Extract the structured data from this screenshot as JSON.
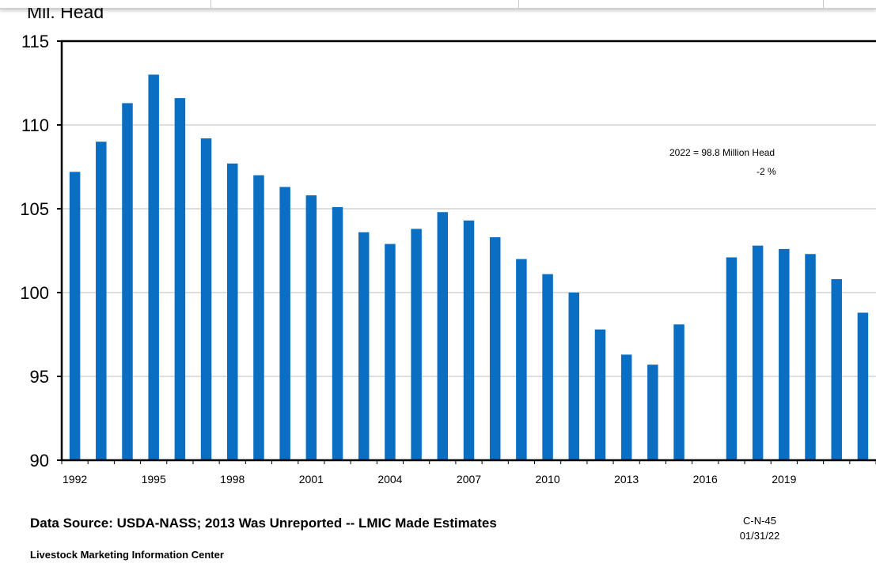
{
  "window": {
    "strip_separators": 3
  },
  "chart_data": {
    "type": "bar",
    "ylabel": "Mil. Head",
    "ylim": [
      90,
      115
    ],
    "yticks": [
      90,
      95,
      100,
      105,
      110,
      115
    ],
    "grid": true,
    "bar_color": "#0a6fc2",
    "categories": [
      "1992",
      "1993",
      "1994",
      "1995",
      "1996",
      "1997",
      "1998",
      "1999",
      "2000",
      "2001",
      "2002",
      "2003",
      "2004",
      "2005",
      "2006",
      "2007",
      "2008",
      "2009",
      "2010",
      "2011",
      "2012",
      "2013",
      "2014",
      "2015",
      "2016",
      "2017",
      "2018",
      "2019",
      "2020",
      "2021",
      "2022"
    ],
    "xtick_labels": [
      "1992",
      "1995",
      "1998",
      "2001",
      "2004",
      "2007",
      "2010",
      "2013",
      "2016",
      "2019"
    ],
    "values": [
      107.2,
      109.0,
      111.3,
      113.0,
      111.6,
      109.2,
      107.7,
      107.0,
      106.3,
      105.8,
      105.1,
      103.6,
      102.9,
      103.8,
      104.8,
      104.3,
      103.3,
      102.0,
      101.1,
      100.0,
      97.8,
      96.3,
      95.7,
      98.1,
      null,
      102.1,
      102.8,
      102.6,
      102.3,
      100.8,
      98.8
    ],
    "annotation": {
      "line1": "2022 = 98.8 Million Head",
      "line2": "-2 %"
    }
  },
  "footer": {
    "source": "Data Source:  USDA-NASS; 2013 Was Unreported -- LMIC Made Estimates",
    "org": "Livestock Marketing Information Center",
    "code": "C-N-45",
    "date": "01/31/22"
  }
}
